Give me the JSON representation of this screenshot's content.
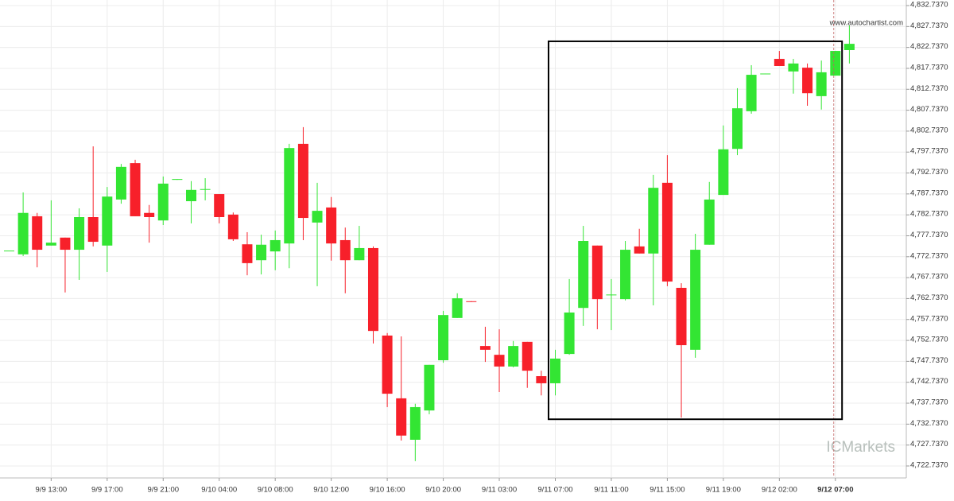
{
  "chart_data": {
    "type": "candlestick",
    "watermark": "www.autochartist.com",
    "logo": "ICMarkets",
    "categories": [
      null,
      null,
      null,
      "9/9 13:00",
      null,
      null,
      null,
      "9/9 17:00",
      null,
      null,
      null,
      "9/9 21:00",
      null,
      null,
      null,
      "9/10 04:00",
      null,
      null,
      null,
      "9/10 08:00",
      null,
      null,
      null,
      "9/10 12:00",
      null,
      null,
      null,
      "9/10 16:00",
      null,
      null,
      null,
      "9/10 20:00",
      null,
      null,
      null,
      "9/11 03:00",
      null,
      null,
      null,
      "9/11 07:00",
      null,
      null,
      null,
      "9/11 11:00",
      null,
      null,
      null,
      "9/11 15:00",
      null,
      null,
      null,
      "9/11 19:00",
      null,
      null,
      null,
      "9/12 02:00",
      null,
      null,
      null,
      "9/12 07:00",
      null
    ],
    "open": [
      4774.2,
      4773.3,
      4782.4,
      4775.4,
      4777.3,
      4774.4,
      4782.2,
      4775.4,
      4786.4,
      4795.1,
      4783.2,
      4781.4,
      4791.1,
      4786.0,
      4788.9,
      4787.7,
      4782.8,
      4775.7,
      4771.9,
      4774.0,
      4775.9,
      4799.7,
      4780.9,
      4784.5,
      4776.7,
      4771.9,
      4774.8,
      4753.9,
      4738.9,
      4729.0,
      4736.0,
      4748.0,
      4758.1,
      4762.1,
      4751.4,
      4749.3,
      4746.5,
      4752.4,
      4744.2,
      4742.5,
      4749.5,
      4760.5,
      4775.4,
      4763.6,
      4762.6,
      4775.2,
      4773.5,
      4790.4,
      4765.3,
      4750.5,
      4775.6,
      4787.5,
      4798.5,
      4807.5,
      4816.4,
      4820.0,
      4817.0,
      4817.9,
      4811.1,
      4816.0,
      4822.1
    ],
    "high": [
      4774.2,
      4788.1,
      4783.2,
      4786.2,
      4777.3,
      4784.3,
      4799.1,
      4789.4,
      4794.9,
      4795.9,
      4785.1,
      4791.9,
      4791.3,
      4790.8,
      4791.5,
      4787.7,
      4783.3,
      4778.6,
      4778.0,
      4779.0,
      4799.7,
      4803.7,
      4790.4,
      4787.0,
      4779.7,
      4780.1,
      4775.2,
      4754.5,
      4753.7,
      4737.6,
      4746.9,
      4759.8,
      4764.0,
      4762.1,
      4756.0,
      4755.4,
      4752.6,
      4752.4,
      4745.5,
      4750.5,
      4767.4,
      4780.1,
      4775.4,
      4767.4,
      4776.5,
      4779.4,
      4792.3,
      4797.0,
      4766.4,
      4778.2,
      4790.6,
      4804.1,
      4813.0,
      4818.5,
      4816.5,
      4821.9,
      4820.0,
      4818.9,
      4819.6,
      4821.9,
      4828.0
    ],
    "low": [
      4774.2,
      4772.9,
      4770.2,
      4775.4,
      4764.2,
      4767.2,
      4775.2,
      4769.1,
      4785.4,
      4782.4,
      4776.1,
      4780.3,
      4791.1,
      4780.7,
      4786.2,
      4780.7,
      4776.5,
      4768.3,
      4768.5,
      4769.5,
      4770.0,
      4776.7,
      4765.7,
      4771.8,
      4764.0,
      4771.9,
      4752.0,
      4736.8,
      4728.8,
      4723.9,
      4735.1,
      4747.4,
      4758.1,
      4761.9,
      4747.6,
      4740.4,
      4746.3,
      4741.4,
      4739.6,
      4739.6,
      4749.3,
      4756.2,
      4755.4,
      4755.2,
      4762.3,
      4773.5,
      4761.1,
      4765.7,
      4734.3,
      4748.6,
      4775.6,
      4787.5,
      4797.0,
      4806.9,
      4816.4,
      4818.3,
      4811.7,
      4808.8,
      4807.9,
      4816.0,
      4818.9
    ],
    "close": [
      4774.2,
      4783.2,
      4774.4,
      4776.1,
      4774.4,
      4782.2,
      4776.3,
      4787.1,
      4794.2,
      4782.4,
      4782.2,
      4790.2,
      4791.3,
      4788.7,
      4788.9,
      4782.2,
      4776.9,
      4771.2,
      4775.6,
      4776.7,
      4798.7,
      4782.0,
      4783.7,
      4775.9,
      4771.9,
      4774.8,
      4755.0,
      4740.0,
      4730.0,
      4736.8,
      4746.9,
      4758.8,
      4762.8,
      4762.0,
      4750.5,
      4746.5,
      4751.4,
      4745.5,
      4742.5,
      4748.4,
      4759.4,
      4776.5,
      4762.6,
      4763.7,
      4774.4,
      4773.5,
      4789.2,
      4766.8,
      4751.6,
      4774.4,
      4786.4,
      4798.4,
      4808.2,
      4816.2,
      4816.5,
      4818.3,
      4818.9,
      4811.8,
      4816.8,
      4821.9,
      4823.6
    ],
    "up_color": "#33e533",
    "down_color": "#f7202a",
    "box": {
      "top": 4824.2,
      "bottom": 4733.9
    },
    "ylim": [
      4720.07,
      4834.07
    ],
    "yticks": [
      {
        "value": 4722.737,
        "label": "4,722.7370"
      },
      {
        "value": 4727.737,
        "label": "4,727.7370"
      },
      {
        "value": 4732.737,
        "label": "4,732.7370"
      },
      {
        "value": 4737.737,
        "label": "4,737.7370"
      },
      {
        "value": 4742.737,
        "label": "4,742.7370"
      },
      {
        "value": 4747.737,
        "label": "4,747.7370"
      },
      {
        "value": 4752.737,
        "label": "4,752.7370"
      },
      {
        "value": 4757.737,
        "label": "4,757.7370"
      },
      {
        "value": 4762.737,
        "label": "4,762.7370"
      },
      {
        "value": 4767.737,
        "label": "4,767.7370"
      },
      {
        "value": 4772.737,
        "label": "4,772.7370"
      },
      {
        "value": 4777.737,
        "label": "4,777.7370"
      },
      {
        "value": 4782.737,
        "label": "4,782.7370"
      },
      {
        "value": 4787.737,
        "label": "4,787.7370"
      },
      {
        "value": 4792.737,
        "label": "4,792.7370"
      },
      {
        "value": 4797.737,
        "label": "4,797.7370"
      },
      {
        "value": 4802.737,
        "label": "4,802.7370"
      },
      {
        "value": 4807.737,
        "label": "4,807.7370"
      },
      {
        "value": 4812.737,
        "label": "4,812.7370"
      },
      {
        "value": 4817.737,
        "label": "4,817.7370"
      },
      {
        "value": 4822.737,
        "label": "4,822.7370"
      },
      {
        "value": 4827.737,
        "label": "4,827.7370"
      },
      {
        "value": 4832.737,
        "label": "4,832.7370"
      }
    ],
    "grid": true
  }
}
